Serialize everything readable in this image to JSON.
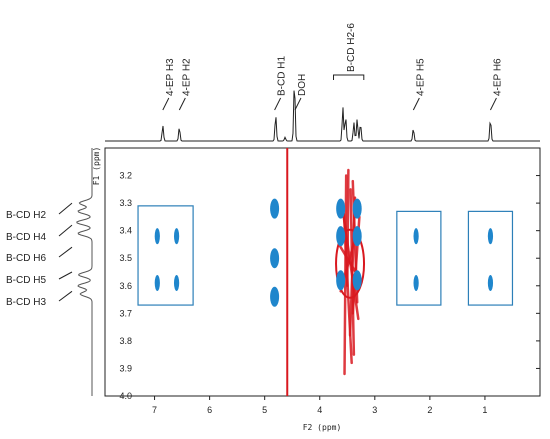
{
  "chart_data": {
    "type": "scatter",
    "xlabel": "F2 (ppm)",
    "ylabel": "F1 (ppm)",
    "xlim": [
      7.9,
      0.0
    ],
    "ylim": [
      4.0,
      3.1
    ],
    "x_ticks": [
      7,
      6,
      5,
      4,
      3,
      2,
      1
    ],
    "y_ticks": [
      3.2,
      3.3,
      3.4,
      3.5,
      3.6,
      3.7,
      3.8,
      3.9,
      4.0
    ],
    "top_spectrum_labels": [
      {
        "label": "4-EP H3",
        "ppm": 6.85
      },
      {
        "label": "4-EP H2",
        "ppm": 6.55
      },
      {
        "label": "B-CD H1",
        "ppm": 4.82
      },
      {
        "label": "DOH",
        "ppm": 4.45
      },
      {
        "label": "B-CD H2-6",
        "ppm": 3.45
      },
      {
        "label": "4-EP H5",
        "ppm": 2.3
      },
      {
        "label": "4-EP H6",
        "ppm": 0.9
      }
    ],
    "top_peaks": [
      {
        "ppm": 6.85,
        "h": 0.25
      },
      {
        "ppm": 6.55,
        "h": 0.22
      },
      {
        "ppm": 4.8,
        "h": 0.42
      },
      {
        "ppm": 4.63,
        "h": 0.06
      },
      {
        "ppm": 4.46,
        "h": 0.97
      },
      {
        "ppm": 3.58,
        "h": 0.55
      },
      {
        "ppm": 3.53,
        "h": 0.4
      },
      {
        "ppm": 3.38,
        "h": 0.3
      },
      {
        "ppm": 3.32,
        "h": 0.36
      },
      {
        "ppm": 3.26,
        "h": 0.28
      },
      {
        "ppm": 2.3,
        "h": 0.2
      },
      {
        "ppm": 0.9,
        "h": 0.35
      }
    ],
    "left_spectrum_labels": [
      {
        "label": "B-CD H2",
        "ppm": 3.3
      },
      {
        "label": "B-CD H4",
        "ppm": 3.38
      },
      {
        "label": "B-CD H6",
        "ppm": 3.46
      },
      {
        "label": "B-CD H5",
        "ppm": 3.55
      },
      {
        "label": "B-CD H3",
        "ppm": 3.62
      }
    ],
    "left_peaks": [
      {
        "ppm": 3.3,
        "h": 0.45
      },
      {
        "ppm": 3.33,
        "h": 0.5
      },
      {
        "ppm": 3.37,
        "h": 0.55
      },
      {
        "ppm": 3.41,
        "h": 0.5
      },
      {
        "ppm": 3.56,
        "h": 0.48
      },
      {
        "ppm": 3.6,
        "h": 0.5
      },
      {
        "ppm": 3.63,
        "h": 0.42
      }
    ],
    "cross_peaks": [
      {
        "x": 6.95,
        "y": 3.42,
        "color": "blue"
      },
      {
        "x": 6.6,
        "y": 3.42,
        "color": "blue"
      },
      {
        "x": 6.95,
        "y": 3.59,
        "color": "blue"
      },
      {
        "x": 6.6,
        "y": 3.59,
        "color": "blue"
      },
      {
        "x": 4.82,
        "y": 3.32,
        "color": "blue"
      },
      {
        "x": 4.82,
        "y": 3.5,
        "color": "blue"
      },
      {
        "x": 4.82,
        "y": 3.64,
        "color": "blue"
      },
      {
        "x": 2.25,
        "y": 3.42,
        "color": "blue"
      },
      {
        "x": 2.25,
        "y": 3.59,
        "color": "blue"
      },
      {
        "x": 0.9,
        "y": 3.42,
        "color": "blue"
      },
      {
        "x": 0.9,
        "y": 3.59,
        "color": "blue"
      },
      {
        "x": 3.62,
        "y": 3.32,
        "color": "blue"
      },
      {
        "x": 3.62,
        "y": 3.42,
        "color": "blue"
      },
      {
        "x": 3.62,
        "y": 3.58,
        "color": "blue"
      },
      {
        "x": 3.32,
        "y": 3.32,
        "color": "blue"
      },
      {
        "x": 3.32,
        "y": 3.42,
        "color": "blue"
      },
      {
        "x": 3.32,
        "y": 3.58,
        "color": "blue"
      }
    ],
    "red_signal_x": 4.59,
    "highlight_boxes": [
      {
        "x_from": 7.3,
        "x_to": 6.3,
        "y_from": 3.31,
        "y_to": 3.67
      },
      {
        "x_from": 2.6,
        "x_to": 1.8,
        "y_from": 3.33,
        "y_to": 3.67
      },
      {
        "x_from": 1.3,
        "x_to": 0.5,
        "y_from": 3.33,
        "y_to": 3.67
      }
    ],
    "colors": {
      "positive": "#1f86cc",
      "negative": "#d9181f",
      "box": "#2c7fb8",
      "axis": "#222222"
    }
  }
}
